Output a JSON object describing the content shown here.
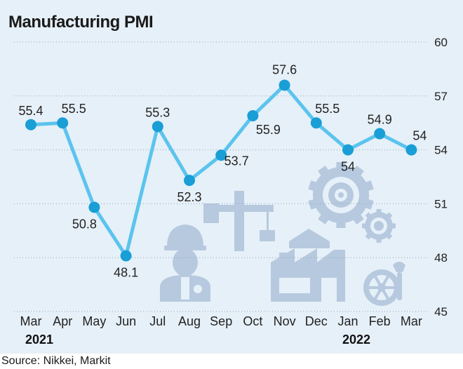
{
  "chart_data": {
    "type": "line",
    "title": "Manufacturing PMI",
    "categories": [
      "Mar",
      "Apr",
      "May",
      "Jun",
      "Jul",
      "Aug",
      "Sep",
      "Oct",
      "Nov",
      "Dec",
      "Jan",
      "Feb",
      "Mar"
    ],
    "year_labels": [
      {
        "category_index": 0,
        "label": "2021"
      },
      {
        "category_index": 10,
        "label": "2022"
      }
    ],
    "values": [
      55.4,
      55.5,
      50.8,
      48.1,
      55.3,
      52.3,
      53.7,
      55.9,
      57.6,
      55.5,
      54,
      54.9,
      54
    ],
    "value_labels": [
      "55.4",
      "55.5",
      "50.8",
      "48.1",
      "55.3",
      "52.3",
      "53.7",
      "55.9",
      "57.6",
      "55.5",
      "54",
      "54.9",
      "54"
    ],
    "ylim": [
      45,
      60
    ],
    "yticks": [
      45,
      48,
      51,
      54,
      57,
      60
    ],
    "y_axis_side": "right",
    "grid": "horizontal-dotted",
    "line_color": "#5bc4ee",
    "marker_color": "#1a9ed6",
    "source": "Source: Nikkei, Markit"
  },
  "decor": {
    "background_color": "#e6f0f8",
    "illustration_color": "#b7c9df",
    "icons": [
      "worker-icon",
      "crane-icon",
      "factory-icon",
      "gear-icon",
      "wrench-icon"
    ]
  }
}
